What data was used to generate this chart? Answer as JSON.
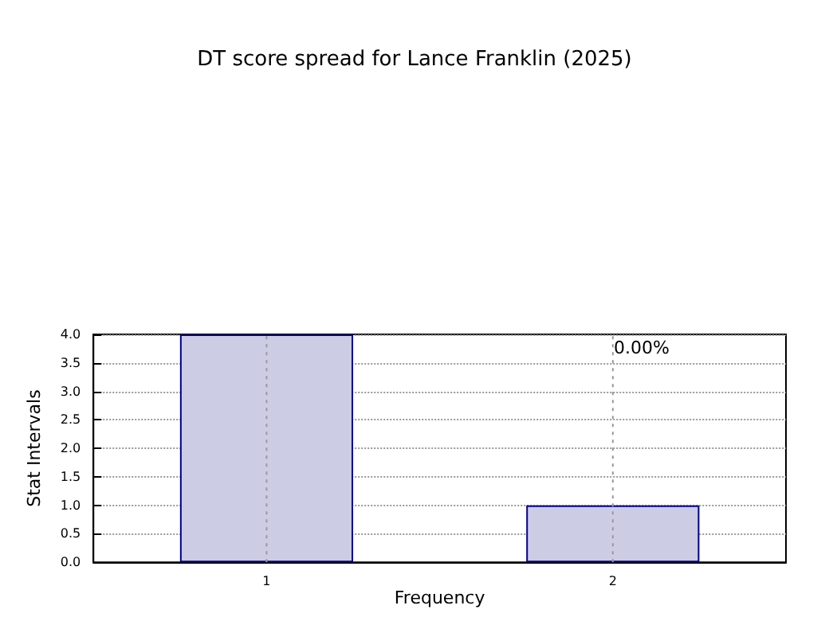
{
  "chart_data": {
    "type": "bar",
    "title": "DT score spread for Lance Franklin (2025)",
    "xlabel": "Frequency",
    "ylabel": "Stat Intervals",
    "categories": [
      "1",
      "2"
    ],
    "values": [
      4,
      1
    ],
    "color": "#cccce4",
    "ylim": [
      0,
      4
    ],
    "yticks": [
      {
        "value": 0,
        "label": "0.0"
      },
      {
        "value": 0.5,
        "label": "0.5"
      },
      {
        "value": 1,
        "label": "1.0"
      },
      {
        "value": 1.5,
        "label": "1.5"
      },
      {
        "value": 2,
        "label": "2.0"
      },
      {
        "value": 2.5,
        "label": "2.5"
      },
      {
        "value": 3,
        "label": "3.0"
      },
      {
        "value": 3.5,
        "label": "3.5"
      },
      {
        "value": 4,
        "label": "4.0"
      }
    ],
    "grid": true,
    "annotations": [
      "0.00%"
    ]
  }
}
